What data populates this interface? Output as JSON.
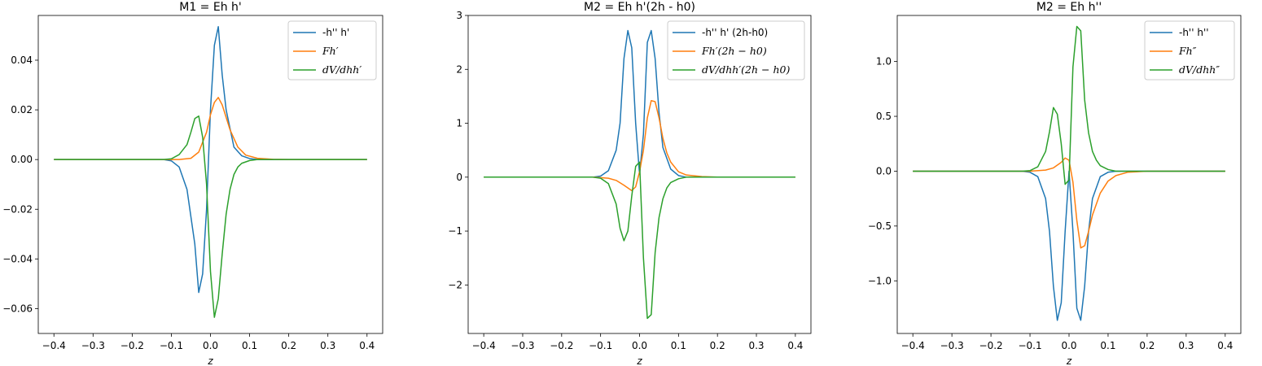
{
  "chart_data": [
    {
      "type": "line",
      "title": "M1 = Eh h'",
      "xlabel": "z",
      "ylabel": "",
      "xlim": [
        -0.44,
        0.44
      ],
      "ylim": [
        -0.07,
        0.058
      ],
      "xticks": [
        -0.4,
        -0.3,
        -0.2,
        -0.1,
        0.0,
        0.1,
        0.2,
        0.3,
        0.4
      ],
      "yticks": [
        -0.06,
        -0.04,
        -0.02,
        0.0,
        0.02,
        0.04
      ],
      "ytick_labels": [
        "−0.06",
        "−0.04",
        "−0.02",
        "0.00",
        "0.02",
        "0.04"
      ],
      "legend_position": "top-right",
      "series": [
        {
          "name": "-h'' h'",
          "italic": false,
          "color": "#1f77b4",
          "x": [
            -0.4,
            -0.12,
            -0.1,
            -0.08,
            -0.06,
            -0.04,
            -0.03,
            -0.02,
            -0.01,
            0.0,
            0.01,
            0.02,
            0.03,
            0.04,
            0.06,
            0.08,
            0.1,
            0.12,
            0.4
          ],
          "y": [
            0,
            0,
            -0.0005,
            -0.003,
            -0.012,
            -0.034,
            -0.0535,
            -0.046,
            -0.02,
            0.02,
            0.046,
            0.0535,
            0.034,
            0.02,
            0.005,
            0.0015,
            0.0004,
            0,
            0
          ]
        },
        {
          "name": "Fh′",
          "italic": true,
          "color": "#ff7f0e",
          "x": [
            -0.4,
            -0.12,
            -0.08,
            -0.05,
            -0.03,
            -0.01,
            0.0,
            0.01,
            0.02,
            0.03,
            0.05,
            0.07,
            0.09,
            0.12,
            0.16,
            0.2,
            0.4
          ],
          "y": [
            0,
            0,
            0.0,
            0.0005,
            0.003,
            0.011,
            0.018,
            0.023,
            0.025,
            0.022,
            0.012,
            0.005,
            0.0018,
            0.0005,
            0.0001,
            0,
            0
          ]
        },
        {
          "name": "dV/dhh′",
          "italic": true,
          "color": "#2ca02c",
          "x": [
            -0.4,
            -0.12,
            -0.1,
            -0.08,
            -0.06,
            -0.05,
            -0.04,
            -0.03,
            -0.02,
            -0.01,
            0.0,
            0.01,
            0.02,
            0.03,
            0.04,
            0.05,
            0.06,
            0.07,
            0.08,
            0.1,
            0.12,
            0.15,
            0.4
          ],
          "y": [
            0,
            0,
            0.0003,
            0.002,
            0.006,
            0.011,
            0.0165,
            0.0175,
            0.009,
            -0.01,
            -0.045,
            -0.0635,
            -0.056,
            -0.038,
            -0.022,
            -0.012,
            -0.006,
            -0.003,
            -0.0015,
            -0.0004,
            0,
            0,
            0
          ]
        }
      ]
    },
    {
      "type": "line",
      "title": "M2 = Eh h'(2h - h0)",
      "xlabel": "z",
      "ylabel": "",
      "xlim": [
        -0.44,
        0.44
      ],
      "ylim": [
        -2.9,
        3.0
      ],
      "xticks": [
        -0.4,
        -0.3,
        -0.2,
        -0.1,
        0.0,
        0.1,
        0.2,
        0.3,
        0.4
      ],
      "yticks": [
        -2,
        -1,
        0,
        1,
        2,
        3
      ],
      "ytick_labels": [
        "−2",
        "−1",
        "0",
        "1",
        "2",
        "3"
      ],
      "legend_position": "top-right",
      "series": [
        {
          "name": "-h'' h' (2h-h0)",
          "italic": false,
          "color": "#1f77b4",
          "x": [
            -0.4,
            -0.12,
            -0.1,
            -0.08,
            -0.06,
            -0.05,
            -0.04,
            -0.03,
            -0.02,
            -0.01,
            0.0,
            0.01,
            0.02,
            0.03,
            0.04,
            0.05,
            0.06,
            0.08,
            0.1,
            0.12,
            0.4
          ],
          "y": [
            0,
            0,
            0.02,
            0.12,
            0.5,
            1.0,
            2.2,
            2.72,
            2.4,
            1.0,
            0.05,
            0.8,
            2.5,
            2.72,
            2.2,
            1.2,
            0.55,
            0.15,
            0.03,
            0,
            0
          ]
        },
        {
          "name": "Fh′(2h − h0)",
          "italic": true,
          "color": "#ff7f0e",
          "x": [
            -0.4,
            -0.12,
            -0.08,
            -0.06,
            -0.04,
            -0.02,
            -0.01,
            0.0,
            0.01,
            0.02,
            0.03,
            0.04,
            0.05,
            0.06,
            0.07,
            0.08,
            0.1,
            0.12,
            0.16,
            0.2,
            0.4
          ],
          "y": [
            0,
            0,
            -0.02,
            -0.06,
            -0.15,
            -0.25,
            -0.18,
            0.1,
            0.5,
            1.1,
            1.42,
            1.4,
            1.1,
            0.72,
            0.45,
            0.28,
            0.1,
            0.04,
            0.01,
            0,
            0
          ]
        },
        {
          "name": "dV/dhh′(2h − h0)",
          "italic": true,
          "color": "#2ca02c",
          "x": [
            -0.4,
            -0.12,
            -0.1,
            -0.08,
            -0.06,
            -0.05,
            -0.04,
            -0.03,
            -0.02,
            -0.01,
            0.0,
            0.01,
            0.02,
            0.03,
            0.04,
            0.05,
            0.06,
            0.07,
            0.08,
            0.1,
            0.12,
            0.15,
            0.4
          ],
          "y": [
            0,
            0,
            -0.02,
            -0.12,
            -0.5,
            -0.95,
            -1.18,
            -1.0,
            -0.35,
            0.2,
            0.28,
            -1.5,
            -2.62,
            -2.55,
            -1.4,
            -0.75,
            -0.4,
            -0.2,
            -0.1,
            -0.03,
            0,
            0,
            0
          ]
        }
      ]
    },
    {
      "type": "line",
      "title": "M2 = Eh h''",
      "xlabel": "z",
      "ylabel": "",
      "xlim": [
        -0.44,
        0.44
      ],
      "ylim": [
        -1.48,
        1.42
      ],
      "xticks": [
        -0.4,
        -0.3,
        -0.2,
        -0.1,
        0.0,
        0.1,
        0.2,
        0.3,
        0.4
      ],
      "yticks": [
        -1.0,
        -0.5,
        0.0,
        0.5,
        1.0
      ],
      "ytick_labels": [
        "−1.0",
        "−0.5",
        "0.0",
        "0.5",
        "1.0"
      ],
      "legend_position": "top-right",
      "series": [
        {
          "name": "-h'' h''",
          "italic": false,
          "color": "#1f77b4",
          "x": [
            -0.4,
            -0.12,
            -0.1,
            -0.08,
            -0.06,
            -0.05,
            -0.04,
            -0.03,
            -0.02,
            -0.01,
            0.0,
            0.01,
            0.02,
            0.03,
            0.04,
            0.05,
            0.06,
            0.08,
            0.1,
            0.12,
            0.4
          ],
          "y": [
            0,
            0,
            -0.01,
            -0.05,
            -0.25,
            -0.55,
            -1.05,
            -1.36,
            -1.2,
            -0.55,
            0,
            -0.55,
            -1.25,
            -1.36,
            -1.05,
            -0.55,
            -0.25,
            -0.05,
            -0.01,
            0,
            0
          ]
        },
        {
          "name": "Fh″",
          "italic": true,
          "color": "#ff7f0e",
          "x": [
            -0.4,
            -0.1,
            -0.06,
            -0.04,
            -0.02,
            -0.01,
            0.0,
            0.01,
            0.02,
            0.03,
            0.04,
            0.05,
            0.06,
            0.08,
            0.1,
            0.12,
            0.15,
            0.2,
            0.25,
            0.4
          ],
          "y": [
            0,
            0,
            0.01,
            0.03,
            0.08,
            0.12,
            0.1,
            -0.1,
            -0.45,
            -0.7,
            -0.68,
            -0.55,
            -0.4,
            -0.2,
            -0.09,
            -0.04,
            -0.01,
            0,
            0,
            0
          ]
        },
        {
          "name": "dV/dhh″",
          "italic": true,
          "color": "#2ca02c",
          "x": [
            -0.4,
            -0.12,
            -0.1,
            -0.08,
            -0.06,
            -0.05,
            -0.04,
            -0.03,
            -0.02,
            -0.01,
            0.0,
            0.01,
            0.02,
            0.03,
            0.04,
            0.05,
            0.06,
            0.07,
            0.08,
            0.1,
            0.12,
            0.15,
            0.4
          ],
          "y": [
            0,
            0,
            0.005,
            0.04,
            0.18,
            0.36,
            0.58,
            0.52,
            0.25,
            -0.12,
            -0.08,
            0.95,
            1.32,
            1.28,
            0.65,
            0.35,
            0.18,
            0.1,
            0.05,
            0.015,
            0,
            0,
            0
          ]
        }
      ]
    }
  ]
}
